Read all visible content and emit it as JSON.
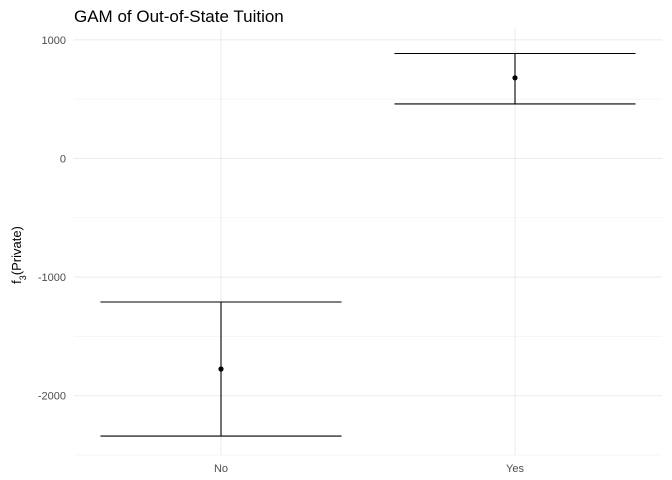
{
  "chart_data": {
    "type": "errorbar",
    "title": "GAM of Out-of-State Tuition",
    "ylabel_main": "f",
    "ylabel_sub": "3",
    "ylabel_rest": "(Private)",
    "xlabel": "",
    "categories": [
      "No",
      "Yes"
    ],
    "estimates": [
      -1775,
      680
    ],
    "lower": [
      -2340,
      460
    ],
    "upper": [
      -1210,
      885
    ],
    "ylim": [
      -2500,
      1100
    ],
    "yticks": [
      1000,
      0,
      -1000,
      -2000
    ],
    "ytick_labels": [
      "1000",
      "0",
      "-1000",
      "-2000"
    ],
    "grid": true,
    "colors": {
      "marks": "#000000",
      "grid": "#ebebeb",
      "background": "#ffffff"
    }
  }
}
